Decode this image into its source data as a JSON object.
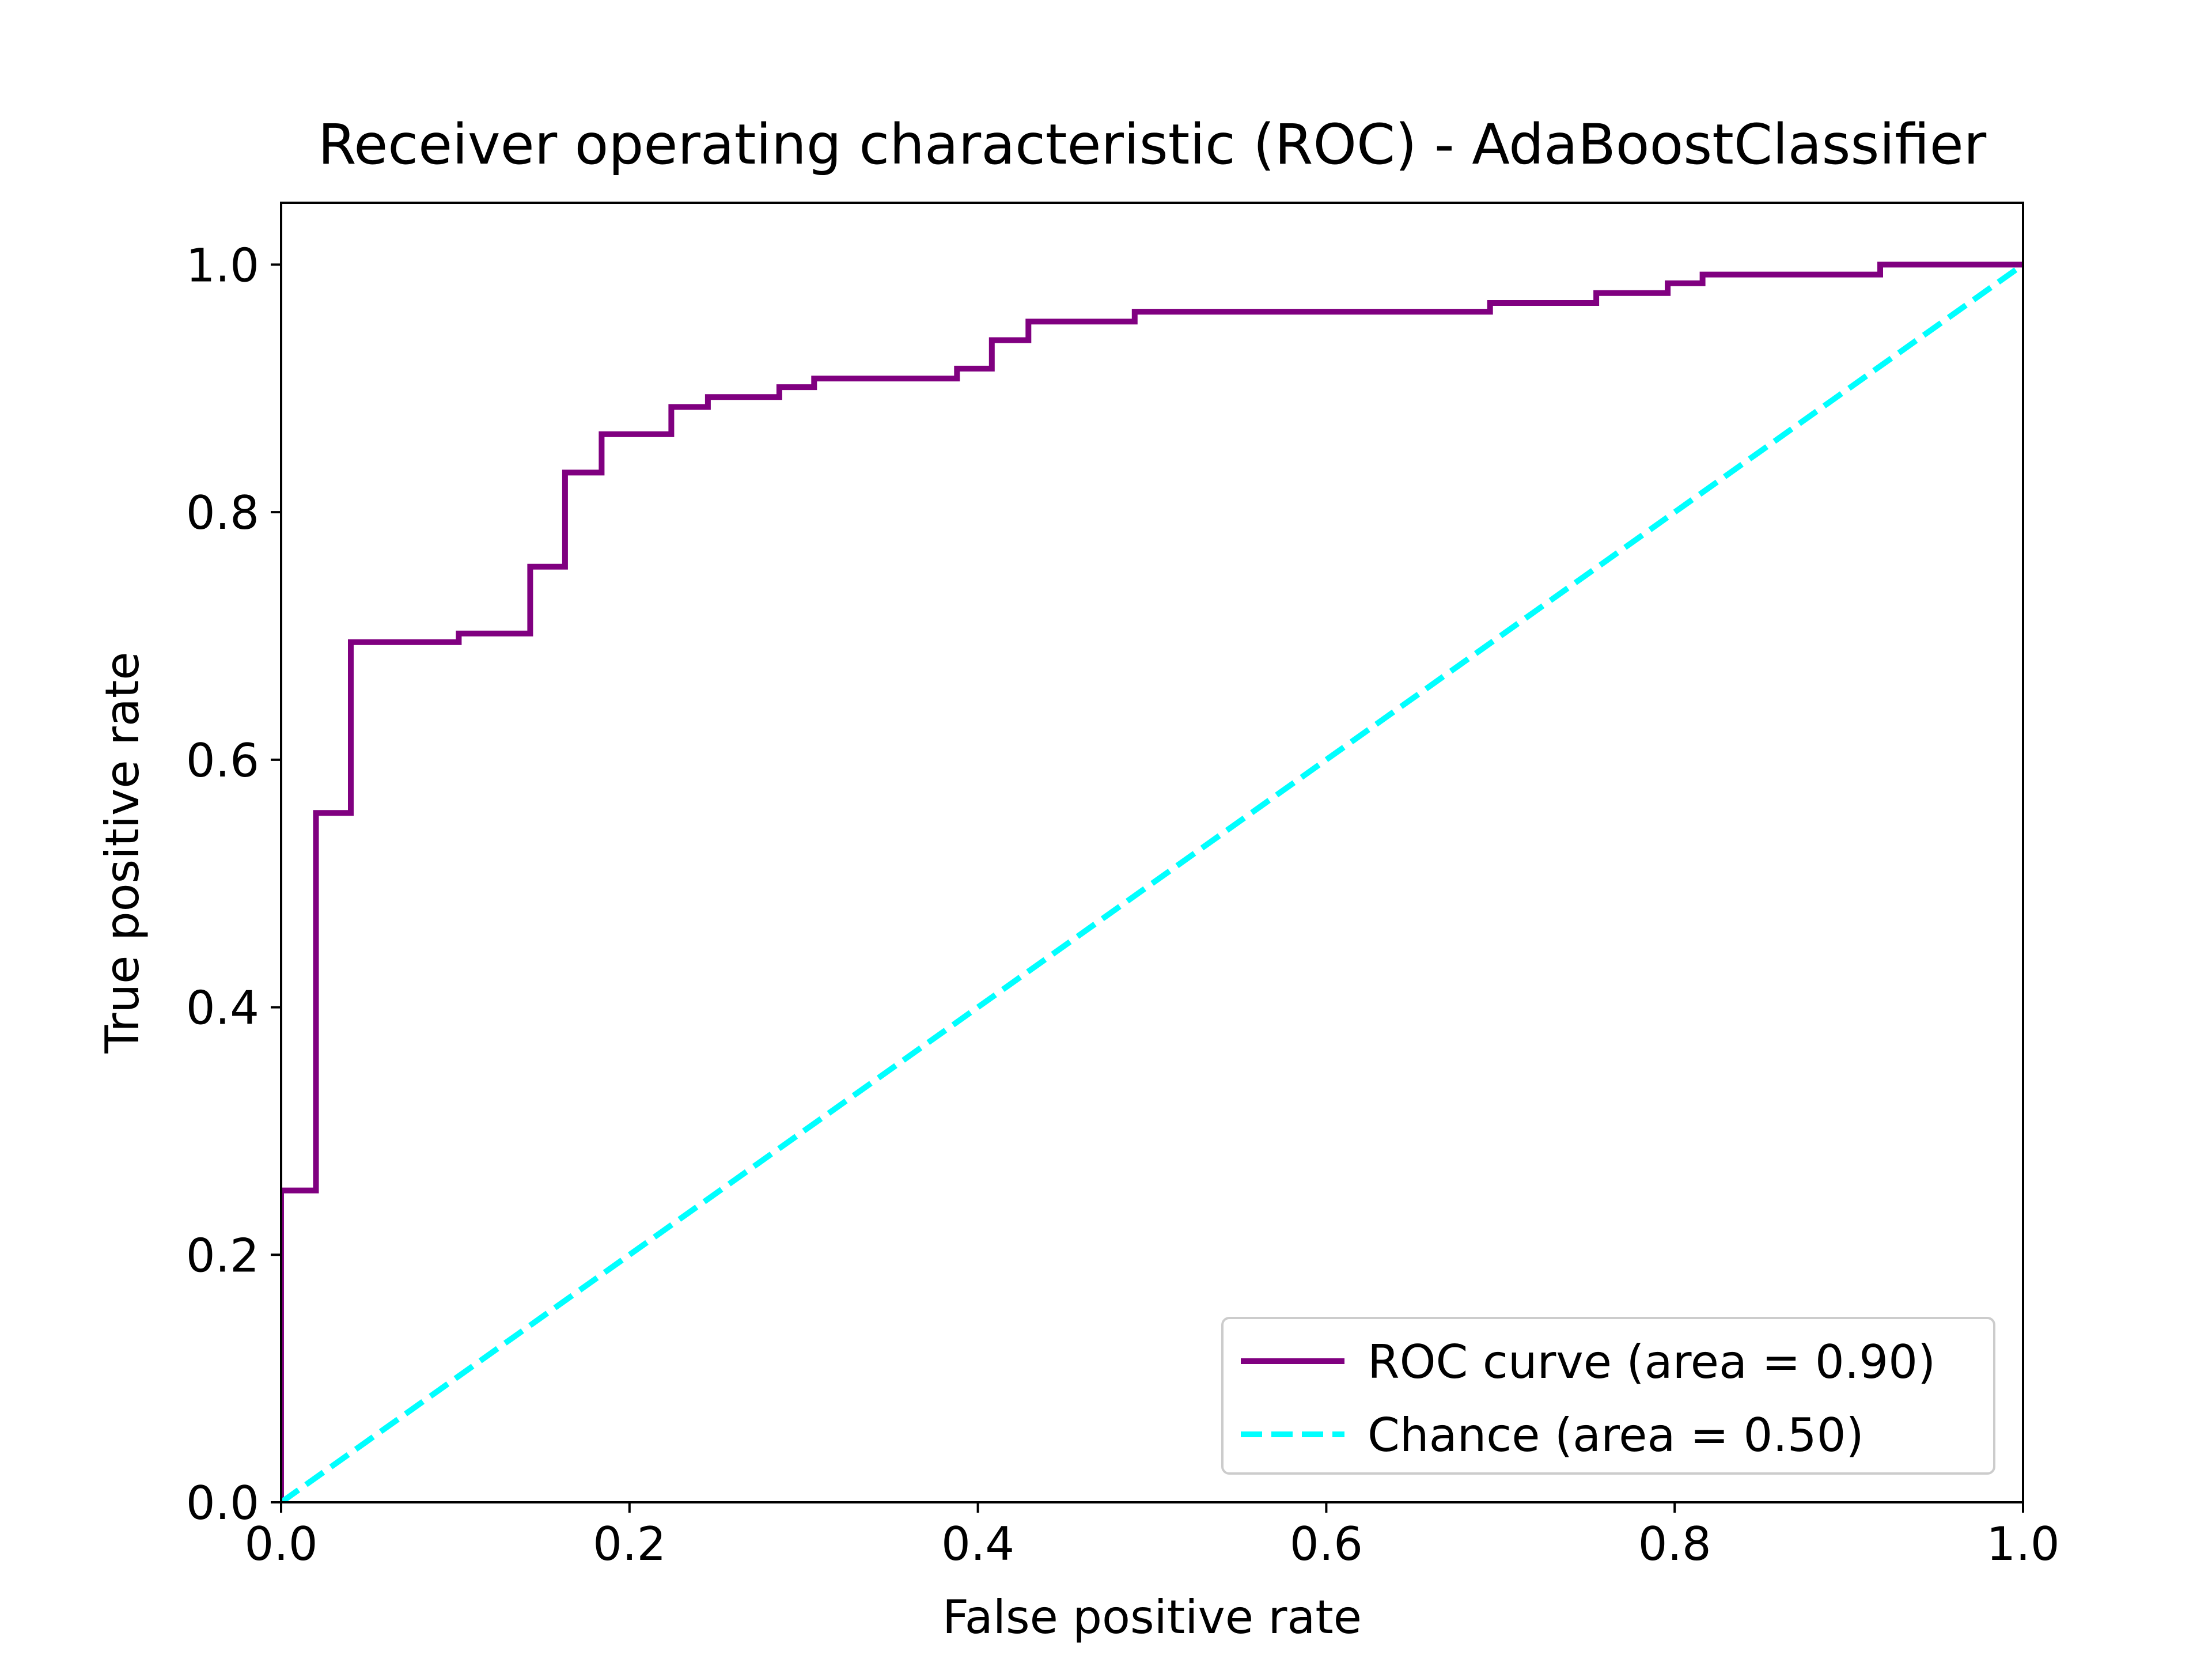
{
  "chart_data": {
    "type": "line",
    "title": "Receiver operating characteristic (ROC) - AdaBoostClassifier",
    "xlabel": "False positive rate",
    "ylabel": "True positive rate",
    "xlim": [
      0.0,
      1.0
    ],
    "ylim": [
      0.0,
      1.05
    ],
    "xticks": [
      "0.0",
      "0.2",
      "0.4",
      "0.6",
      "0.8",
      "1.0"
    ],
    "yticks": [
      "0.0",
      "0.2",
      "0.4",
      "0.6",
      "0.8",
      "1.0"
    ],
    "grid": false,
    "legend_position": "lower-right",
    "series": [
      {
        "name": "ROC curve (area = 0.90)",
        "color": "#800080",
        "style": "solid",
        "step": true,
        "x": [
          0.0,
          0.0,
          0.02,
          0.02,
          0.04,
          0.04,
          0.102,
          0.102,
          0.143,
          0.143,
          0.163,
          0.163,
          0.184,
          0.184,
          0.224,
          0.224,
          0.245,
          0.245,
          0.286,
          0.286,
          0.306,
          0.306,
          0.388,
          0.388,
          0.408,
          0.408,
          0.429,
          0.429,
          0.49,
          0.49,
          0.694,
          0.694,
          0.755,
          0.755,
          0.796,
          0.796,
          0.816,
          0.816,
          0.918,
          0.918,
          1.0
        ],
        "y": [
          0.0,
          0.252,
          0.252,
          0.557,
          0.557,
          0.695,
          0.695,
          0.702,
          0.702,
          0.756,
          0.756,
          0.832,
          0.832,
          0.863,
          0.863,
          0.885,
          0.885,
          0.893,
          0.893,
          0.901,
          0.901,
          0.908,
          0.908,
          0.916,
          0.916,
          0.939,
          0.939,
          0.954,
          0.954,
          0.962,
          0.962,
          0.969,
          0.969,
          0.977,
          0.977,
          0.985,
          0.985,
          0.992,
          0.992,
          1.0,
          1.0
        ]
      },
      {
        "name": "Chance (area = 0.50)",
        "color": "#00ffff",
        "style": "dashed",
        "step": false,
        "x": [
          0.0,
          1.0
        ],
        "y": [
          0.0,
          1.0
        ]
      }
    ]
  }
}
